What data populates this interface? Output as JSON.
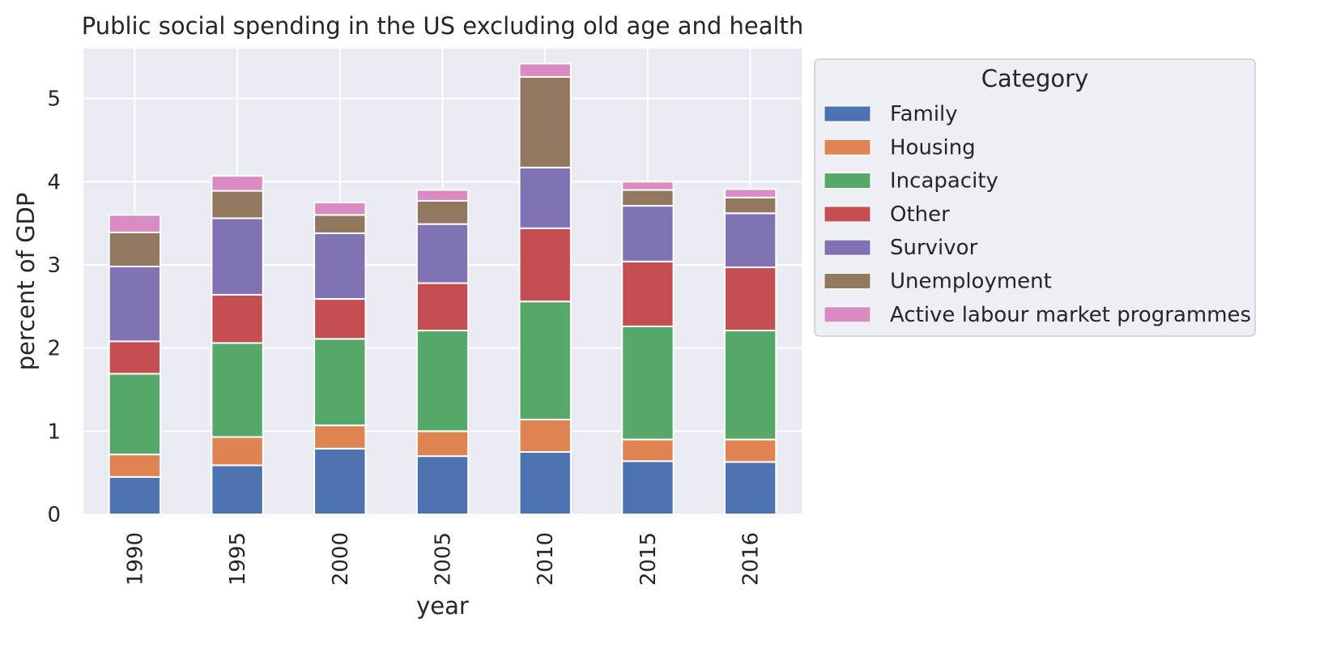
{
  "chart_data": {
    "type": "bar",
    "stacked": true,
    "title": "Public social spending in the US excluding old age and health",
    "xlabel": "year",
    "ylabel": "percent of GDP",
    "categories": [
      "1990",
      "1995",
      "2000",
      "2005",
      "2010",
      "2015",
      "2016"
    ],
    "ylim": [
      0,
      5.6
    ],
    "yticks": [
      "0",
      "1",
      "2",
      "3",
      "4",
      "5"
    ],
    "grid": true,
    "legend": {
      "title": "Category",
      "placement": "outside-top-right"
    },
    "series": [
      {
        "name": "Family",
        "color": "#4c72b0",
        "values": [
          0.45,
          0.59,
          0.79,
          0.7,
          0.75,
          0.64,
          0.63
        ]
      },
      {
        "name": "Housing",
        "color": "#dd8452",
        "values": [
          0.27,
          0.34,
          0.28,
          0.3,
          0.39,
          0.26,
          0.27
        ]
      },
      {
        "name": "Incapacity",
        "color": "#55a868",
        "values": [
          0.97,
          1.13,
          1.04,
          1.21,
          1.42,
          1.36,
          1.31
        ]
      },
      {
        "name": "Other",
        "color": "#c44e52",
        "values": [
          0.39,
          0.58,
          0.48,
          0.57,
          0.88,
          0.78,
          0.76
        ]
      },
      {
        "name": "Survivor",
        "color": "#8172b3",
        "values": [
          0.9,
          0.92,
          0.79,
          0.71,
          0.73,
          0.67,
          0.65
        ]
      },
      {
        "name": "Unemployment",
        "color": "#937860",
        "values": [
          0.41,
          0.33,
          0.22,
          0.28,
          1.09,
          0.19,
          0.19
        ]
      },
      {
        "name": "Active labour market programmes",
        "color": "#da8bc3",
        "values": [
          0.21,
          0.18,
          0.15,
          0.13,
          0.16,
          0.1,
          0.1
        ]
      }
    ]
  }
}
